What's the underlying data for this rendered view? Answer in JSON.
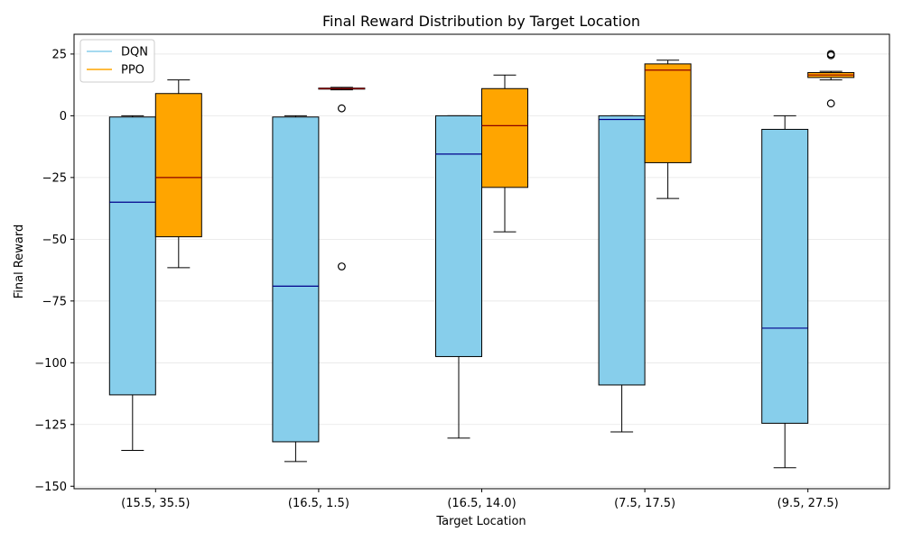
{
  "chart_data": {
    "type": "box",
    "title": "Final Reward Distribution by Target Location",
    "xlabel": "Target Location",
    "ylabel": "Final Reward",
    "ylim": [
      -151,
      33
    ],
    "yticks": [
      25,
      0,
      -25,
      -50,
      -75,
      -100,
      -125,
      -150
    ],
    "grid": "horizontal",
    "legend_position": "top-left",
    "categories": [
      "(15.5, 35.5)",
      "(16.5, 1.5)",
      "(16.5, 14.0)",
      "(7.5, 17.5)",
      "(9.5, 27.5)"
    ],
    "series": [
      {
        "name": "DQN",
        "fill": "#87CEEB",
        "median_color": "#00008B",
        "boxes": [
          {
            "whislo": -135.5,
            "q1": -113,
            "median": -35,
            "q3": -0.5,
            "whishi": 0,
            "fliers": []
          },
          {
            "whislo": -140,
            "q1": -132,
            "median": -69,
            "q3": -0.5,
            "whishi": 0,
            "fliers": []
          },
          {
            "whislo": -130.5,
            "q1": -97.5,
            "median": -15.5,
            "q3": 0,
            "whishi": 0,
            "fliers": []
          },
          {
            "whislo": -128,
            "q1": -109,
            "median": -1.5,
            "q3": 0,
            "whishi": 0,
            "fliers": []
          },
          {
            "whislo": -142.5,
            "q1": -124.5,
            "median": -86,
            "q3": -5.5,
            "whishi": 0,
            "fliers": []
          }
        ]
      },
      {
        "name": "PPO",
        "fill": "#FFA500",
        "median_color": "#8B0000",
        "boxes": [
          {
            "whislo": -61.5,
            "q1": -49,
            "median": -25,
            "q3": 9,
            "whishi": 14.5,
            "fliers": []
          },
          {
            "whislo": 10.5,
            "q1": 10.8,
            "median": 11,
            "q3": 11.2,
            "whishi": 11.5,
            "fliers": [
              3,
              -61
            ]
          },
          {
            "whislo": -47,
            "q1": -29,
            "median": -4,
            "q3": 11,
            "whishi": 16.5,
            "fliers": []
          },
          {
            "whislo": -33.5,
            "q1": -19,
            "median": 18.5,
            "q3": 21,
            "whishi": 22.5,
            "fliers": []
          },
          {
            "whislo": 14.5,
            "q1": 15.5,
            "median": 16.5,
            "q3": 17.5,
            "whishi": 18,
            "fliers": [
              25,
              24.5,
              5
            ]
          }
        ]
      }
    ]
  }
}
